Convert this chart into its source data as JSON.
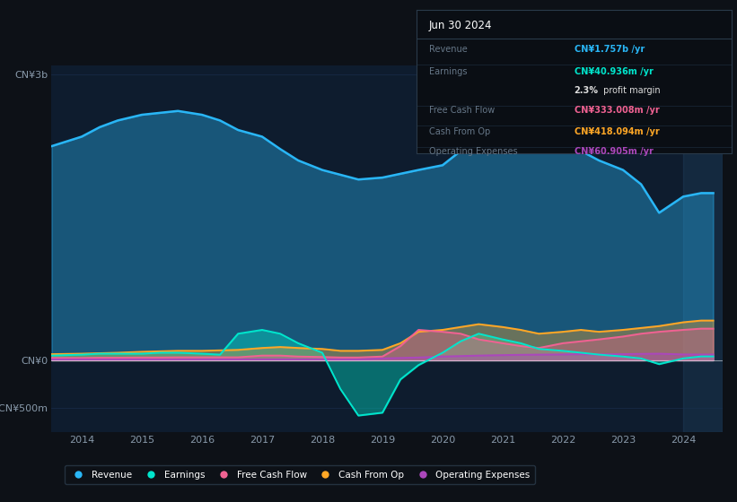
{
  "bg_color": "#0d1117",
  "plot_bg_color": "#0e1c2e",
  "grid_color": "#1a3050",
  "text_color": "#8899aa",
  "title_color": "#ffffff",
  "years": [
    2013.5,
    2014.0,
    2014.3,
    2014.6,
    2015.0,
    2015.3,
    2015.6,
    2016.0,
    2016.3,
    2016.6,
    2017.0,
    2017.3,
    2017.6,
    2018.0,
    2018.3,
    2018.6,
    2019.0,
    2019.3,
    2019.6,
    2020.0,
    2020.3,
    2020.6,
    2021.0,
    2021.3,
    2021.6,
    2022.0,
    2022.3,
    2022.6,
    2023.0,
    2023.3,
    2023.6,
    2024.0,
    2024.3,
    2024.5
  ],
  "revenue": [
    2.25,
    2.35,
    2.45,
    2.52,
    2.58,
    2.6,
    2.62,
    2.58,
    2.52,
    2.42,
    2.35,
    2.22,
    2.1,
    2.0,
    1.95,
    1.9,
    1.92,
    1.96,
    2.0,
    2.05,
    2.2,
    2.55,
    2.62,
    2.55,
    2.42,
    2.3,
    2.2,
    2.1,
    2.0,
    1.85,
    1.55,
    1.72,
    1.757,
    1.757
  ],
  "earnings": [
    0.05,
    0.06,
    0.07,
    0.07,
    0.07,
    0.08,
    0.08,
    0.07,
    0.06,
    0.28,
    0.32,
    0.28,
    0.18,
    0.08,
    -0.3,
    -0.58,
    -0.55,
    -0.2,
    -0.05,
    0.08,
    0.2,
    0.28,
    0.22,
    0.18,
    0.12,
    0.1,
    0.08,
    0.06,
    0.04,
    0.02,
    -0.04,
    0.02,
    0.041,
    0.041
  ],
  "free_cash_flow": [
    0.025,
    0.025,
    0.028,
    0.028,
    0.03,
    0.03,
    0.032,
    0.032,
    0.032,
    0.032,
    0.05,
    0.05,
    0.04,
    0.035,
    0.03,
    0.03,
    0.04,
    0.15,
    0.32,
    0.3,
    0.28,
    0.22,
    0.18,
    0.15,
    0.13,
    0.18,
    0.2,
    0.22,
    0.25,
    0.28,
    0.3,
    0.32,
    0.333,
    0.333
  ],
  "cash_from_op": [
    0.065,
    0.07,
    0.075,
    0.08,
    0.09,
    0.095,
    0.1,
    0.1,
    0.105,
    0.11,
    0.13,
    0.14,
    0.13,
    0.12,
    0.1,
    0.1,
    0.11,
    0.18,
    0.3,
    0.32,
    0.35,
    0.38,
    0.35,
    0.32,
    0.28,
    0.3,
    0.32,
    0.3,
    0.32,
    0.34,
    0.36,
    0.4,
    0.418,
    0.418
  ],
  "operating_expenses": [
    0.01,
    0.01,
    0.01,
    0.01,
    0.01,
    0.01,
    0.01,
    0.01,
    0.01,
    0.01,
    0.01,
    0.01,
    0.01,
    0.01,
    0.01,
    0.01,
    0.02,
    0.025,
    0.03,
    0.04,
    0.045,
    0.05,
    0.055,
    0.058,
    0.06,
    0.062,
    0.065,
    0.062,
    0.065,
    0.068,
    0.07,
    0.062,
    0.061,
    0.061
  ],
  "revenue_color": "#29b6f6",
  "earnings_color": "#00e5cc",
  "free_cash_flow_color": "#f06292",
  "cash_from_op_color": "#ffa726",
  "operating_expenses_color": "#ab47bc",
  "ylim": [
    -0.75,
    3.1
  ],
  "ytick_vals": [
    -0.5,
    0.0,
    3.0
  ],
  "ytick_labels": [
    "-CN¥500m",
    "CN¥0",
    "CN¥3b"
  ],
  "xlim": [
    2013.5,
    2024.65
  ],
  "xticks": [
    2014,
    2015,
    2016,
    2017,
    2018,
    2019,
    2020,
    2021,
    2022,
    2023,
    2024
  ],
  "info_box": {
    "title": "Jun 30 2024",
    "rows": [
      {
        "label": "Revenue",
        "value": "CN¥1.757b /yr",
        "value_color": "#29b6f6"
      },
      {
        "label": "Earnings",
        "value": "CN¥40.936m /yr",
        "value_color": "#00e5cc"
      },
      {
        "label": "",
        "value": "2.3% profit margin",
        "value_color": "#dddddd",
        "bold_prefix": "2.3%"
      },
      {
        "label": "Free Cash Flow",
        "value": "CN¥333.008m /yr",
        "value_color": "#f06292"
      },
      {
        "label": "Cash From Op",
        "value": "CN¥418.094m /yr",
        "value_color": "#ffa726"
      },
      {
        "label": "Operating Expenses",
        "value": "CN¥60.905m /yr",
        "value_color": "#ab47bc"
      }
    ]
  },
  "legend_items": [
    {
      "label": "Revenue",
      "color": "#29b6f6"
    },
    {
      "label": "Earnings",
      "color": "#00e5cc"
    },
    {
      "label": "Free Cash Flow",
      "color": "#f06292"
    },
    {
      "label": "Cash From Op",
      "color": "#ffa726"
    },
    {
      "label": "Operating Expenses",
      "color": "#ab47bc"
    }
  ]
}
